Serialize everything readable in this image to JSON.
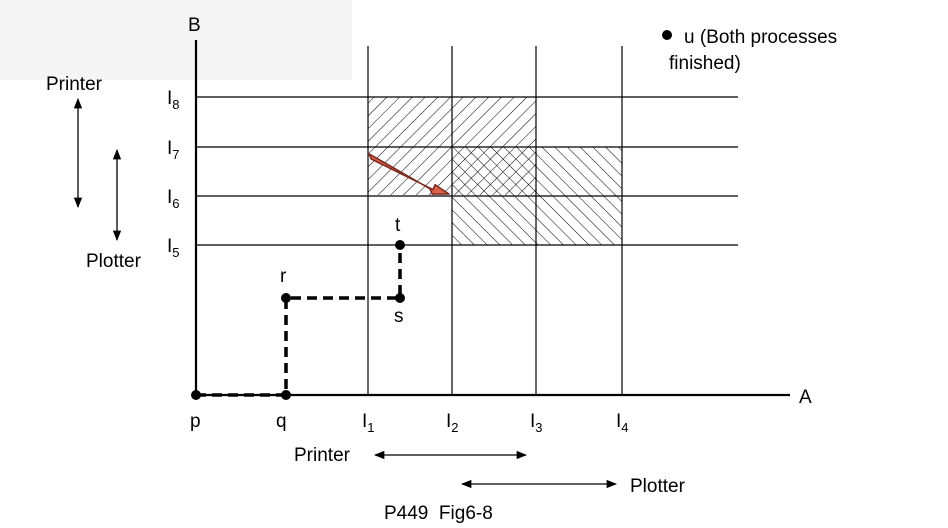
{
  "axes": {
    "x_label": "A",
    "y_label": "B",
    "x_ticks": [
      {
        "main": "I",
        "sub": "1"
      },
      {
        "main": "I",
        "sub": "2"
      },
      {
        "main": "I",
        "sub": "3"
      },
      {
        "main": "I",
        "sub": "4"
      }
    ],
    "y_ticks": [
      {
        "main": "I",
        "sub": "8"
      },
      {
        "main": "I",
        "sub": "7"
      },
      {
        "main": "I",
        "sub": "6"
      },
      {
        "main": "I",
        "sub": "5"
      }
    ]
  },
  "points": {
    "p": "p",
    "q": "q",
    "r": "r",
    "s": "s",
    "t": "t"
  },
  "legend": {
    "line1": "u (Both processes",
    "line2": "finished)"
  },
  "resources": {
    "printer": "Printer",
    "plotter": "Plotter"
  },
  "caption": "P449  Fig6-8",
  "colors": {
    "arrow_fill": "#d9604a",
    "arrow_stroke": "#7a2b1e",
    "grid": "#000000",
    "corner_shade": "#f4f4f4"
  }
}
